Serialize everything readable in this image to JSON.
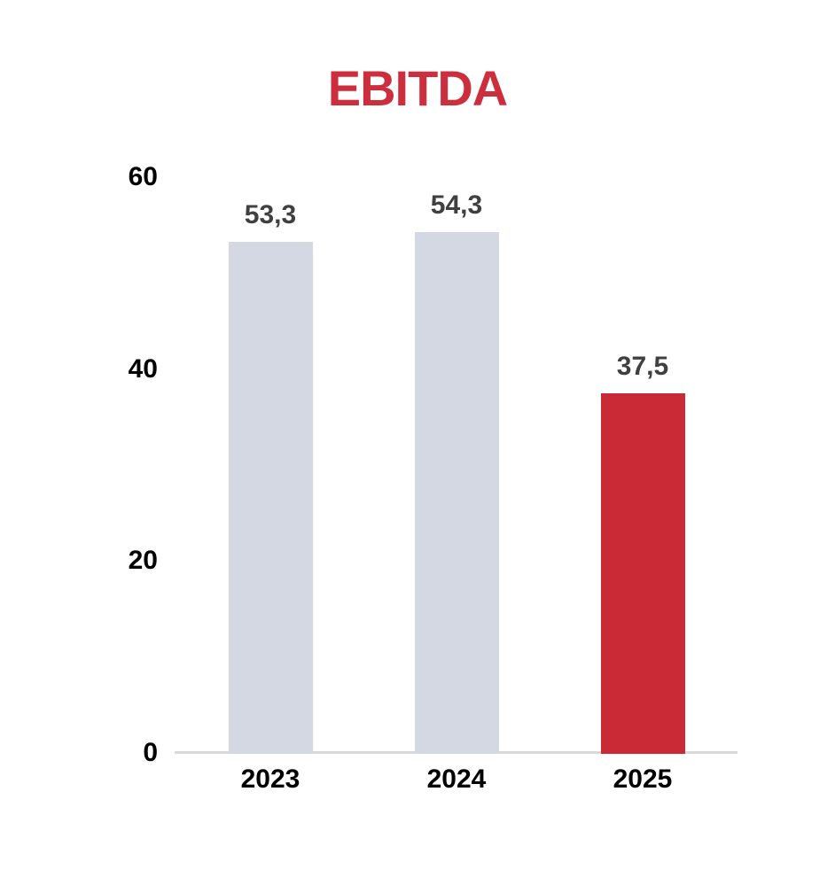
{
  "chart_data": {
    "type": "bar",
    "title": "EBITDA",
    "categories": [
      "2023",
      "2024",
      "2025"
    ],
    "values": [
      53.3,
      54.3,
      37.5
    ],
    "value_labels": [
      "53,3",
      "54,3",
      "37,5"
    ],
    "bar_colors": [
      "#D3D8E3",
      "#D3D8E3",
      "#CA2936"
    ],
    "yticks": [
      0,
      20,
      40,
      60
    ],
    "ylim": [
      0,
      60
    ],
    "xlabel": "",
    "ylabel": "",
    "grid": false,
    "legend": false,
    "decimal_separator": ",",
    "colors": {
      "title": "#CC2E3E",
      "value_label": "#404040",
      "tick_label": "#000000",
      "axis_line": "#D9D9D9",
      "background": "#FFFFFF"
    }
  }
}
